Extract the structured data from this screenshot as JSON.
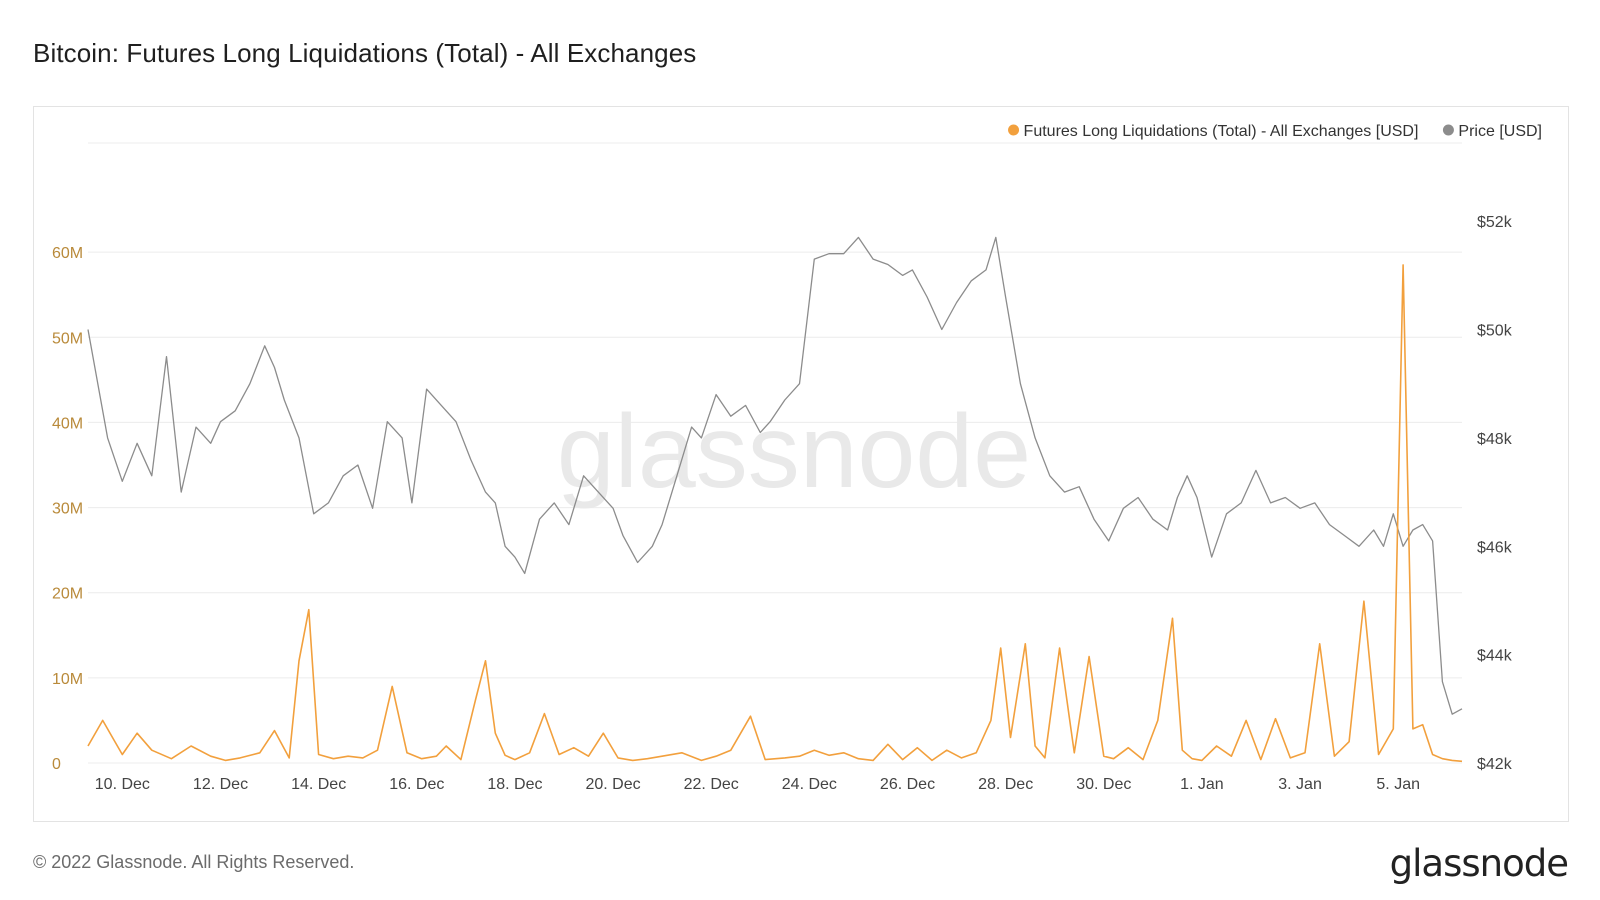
{
  "title": "Bitcoin: Futures Long Liquidations (Total) - All Exchanges",
  "footer": "© 2022 Glassnode. All Rights Reserved.",
  "brand": "glassnode",
  "watermark": "glassnode",
  "colors": {
    "liquidations": "#f2a03d",
    "price": "#8c8c8c",
    "left_axis_text": "#b98a3a",
    "right_axis_text": "#444444",
    "grid": "#ececec",
    "watermark": "#e9e9e9"
  },
  "chart_data": {
    "type": "line",
    "legend": {
      "placement": "top-right",
      "entries": [
        {
          "label": "Futures Long Liquidations (Total) - All Exchanges [USD]",
          "color": "#f2a03d"
        },
        {
          "label": "Price [USD]",
          "color": "#8c8c8c"
        }
      ]
    },
    "x_axis": {
      "range": [
        9.3,
        37.3
      ],
      "ticks": [
        {
          "value": 10,
          "label": "10. Dec"
        },
        {
          "value": 12,
          "label": "12. Dec"
        },
        {
          "value": 14,
          "label": "14. Dec"
        },
        {
          "value": 16,
          "label": "16. Dec"
        },
        {
          "value": 18,
          "label": "18. Dec"
        },
        {
          "value": 20,
          "label": "20. Dec"
        },
        {
          "value": 22,
          "label": "22. Dec"
        },
        {
          "value": 24,
          "label": "24. Dec"
        },
        {
          "value": 26,
          "label": "26. Dec"
        },
        {
          "value": 28,
          "label": "28. Dec"
        },
        {
          "value": 30,
          "label": "30. Dec"
        },
        {
          "value": 32,
          "label": "1. Jan"
        },
        {
          "value": 34,
          "label": "3. Jan"
        },
        {
          "value": 36,
          "label": "5. Jan"
        }
      ]
    },
    "left_axis": {
      "range": [
        0,
        70000000
      ],
      "ticks": [
        {
          "value": 0,
          "label": "0"
        },
        {
          "value": 10000000,
          "label": "10M"
        },
        {
          "value": 20000000,
          "label": "20M"
        },
        {
          "value": 30000000,
          "label": "30M"
        },
        {
          "value": 40000000,
          "label": "40M"
        },
        {
          "value": 50000000,
          "label": "50M"
        },
        {
          "value": 60000000,
          "label": "60M"
        }
      ]
    },
    "right_axis": {
      "range": [
        42000,
        53000
      ],
      "ticks": [
        {
          "value": 42000,
          "label": "$42k"
        },
        {
          "value": 44000,
          "label": "$44k"
        },
        {
          "value": 46000,
          "label": "$46k"
        },
        {
          "value": 48000,
          "label": "$48k"
        },
        {
          "value": 50000,
          "label": "$50k"
        },
        {
          "value": 52000,
          "label": "$52k"
        }
      ]
    },
    "grid": true,
    "series": [
      {
        "name": "Price [USD]",
        "axis": "right",
        "x": [
          9.3,
          9.5,
          9.7,
          10.0,
          10.3,
          10.6,
          10.9,
          11.2,
          11.5,
          11.8,
          12.0,
          12.3,
          12.6,
          12.9,
          13.1,
          13.3,
          13.6,
          13.9,
          14.2,
          14.5,
          14.8,
          15.1,
          15.4,
          15.7,
          15.9,
          16.2,
          16.5,
          16.8,
          17.1,
          17.4,
          17.6,
          17.8,
          18.0,
          18.2,
          18.5,
          18.8,
          19.1,
          19.4,
          19.7,
          20.0,
          20.2,
          20.5,
          20.8,
          21.0,
          21.3,
          21.6,
          21.8,
          22.1,
          22.4,
          22.7,
          23.0,
          23.2,
          23.5,
          23.8,
          24.1,
          24.4,
          24.7,
          25.0,
          25.3,
          25.6,
          25.9,
          26.1,
          26.4,
          26.7,
          27.0,
          27.3,
          27.6,
          27.8,
          28.0,
          28.3,
          28.6,
          28.9,
          29.2,
          29.5,
          29.8,
          30.1,
          30.4,
          30.7,
          31.0,
          31.3,
          31.5,
          31.7,
          31.9,
          32.2,
          32.5,
          32.8,
          33.1,
          33.4,
          33.7,
          34.0,
          34.3,
          34.6,
          34.9,
          35.2,
          35.5,
          35.7,
          35.9,
          36.1,
          36.3,
          36.5,
          36.7,
          36.9,
          37.1,
          37.3
        ],
        "values": [
          50000,
          49000,
          48000,
          47200,
          47900,
          47300,
          49500,
          47000,
          48200,
          47900,
          48300,
          48500,
          49000,
          49700,
          49300,
          48700,
          48000,
          46600,
          46800,
          47300,
          47500,
          46700,
          48300,
          48000,
          46800,
          48900,
          48600,
          48300,
          47600,
          47000,
          46800,
          46000,
          45800,
          45500,
          46500,
          46800,
          46400,
          47300,
          47000,
          46700,
          46200,
          45700,
          46000,
          46400,
          47300,
          48200,
          48000,
          48800,
          48400,
          48600,
          48100,
          48300,
          48700,
          49000,
          51300,
          51400,
          51400,
          51700,
          51300,
          51200,
          51000,
          51100,
          50600,
          50000,
          50500,
          50900,
          51100,
          51700,
          50600,
          49000,
          48000,
          47300,
          47000,
          47100,
          46500,
          46100,
          46700,
          46900,
          46500,
          46300,
          46900,
          47300,
          46900,
          45800,
          46600,
          46800,
          47400,
          46800,
          46900,
          46700,
          46800,
          46400,
          46200,
          46000,
          46300,
          46000,
          46600,
          46000,
          46300,
          46400,
          46100,
          43500,
          42900,
          43000
        ]
      },
      {
        "name": "Futures Long Liquidations (Total) - All Exchanges [USD]",
        "axis": "left",
        "x": [
          9.3,
          9.6,
          9.8,
          10.0,
          10.3,
          10.6,
          11.0,
          11.4,
          11.8,
          12.1,
          12.4,
          12.8,
          13.1,
          13.4,
          13.6,
          13.8,
          14.0,
          14.3,
          14.6,
          14.9,
          15.2,
          15.5,
          15.8,
          16.1,
          16.4,
          16.6,
          16.9,
          17.2,
          17.4,
          17.6,
          17.8,
          18.0,
          18.3,
          18.6,
          18.9,
          19.2,
          19.5,
          19.8,
          20.1,
          20.4,
          20.7,
          21.0,
          21.4,
          21.8,
          22.1,
          22.4,
          22.8,
          23.1,
          23.5,
          23.8,
          24.1,
          24.4,
          24.7,
          25.0,
          25.3,
          25.6,
          25.9,
          26.2,
          26.5,
          26.8,
          27.1,
          27.4,
          27.7,
          27.9,
          28.1,
          28.4,
          28.6,
          28.8,
          29.1,
          29.4,
          29.7,
          30.0,
          30.2,
          30.5,
          30.8,
          31.1,
          31.4,
          31.6,
          31.8,
          32.0,
          32.3,
          32.6,
          32.9,
          33.2,
          33.5,
          33.8,
          34.1,
          34.4,
          34.7,
          35.0,
          35.3,
          35.6,
          35.9,
          36.1,
          36.3,
          36.5,
          36.7,
          36.9,
          37.1,
          37.3
        ],
        "values": [
          2000000,
          5000000,
          3000000,
          1000000,
          3500000,
          1500000,
          500000,
          2000000,
          800000,
          300000,
          600000,
          1200000,
          3800000,
          600000,
          12000000,
          18000000,
          1000000,
          500000,
          800000,
          600000,
          1500000,
          9000000,
          1200000,
          500000,
          800000,
          2000000,
          400000,
          7500000,
          12000000,
          3500000,
          900000,
          400000,
          1200000,
          5800000,
          1000000,
          1800000,
          800000,
          3500000,
          600000,
          300000,
          500000,
          800000,
          1200000,
          300000,
          800000,
          1500000,
          5500000,
          400000,
          600000,
          800000,
          1500000,
          900000,
          1200000,
          500000,
          300000,
          2200000,
          400000,
          1800000,
          300000,
          1500000,
          600000,
          1200000,
          5000000,
          13500000,
          3000000,
          14000000,
          2000000,
          600000,
          13500000,
          1200000,
          12500000,
          800000,
          500000,
          1800000,
          400000,
          5000000,
          17000000,
          1500000,
          500000,
          300000,
          2000000,
          800000,
          5000000,
          400000,
          5200000,
          600000,
          1200000,
          14000000,
          800000,
          2500000,
          19000000,
          1000000,
          4000000,
          58500000,
          4000000,
          4500000,
          1000000,
          500000,
          300000,
          200000
        ]
      }
    ]
  }
}
